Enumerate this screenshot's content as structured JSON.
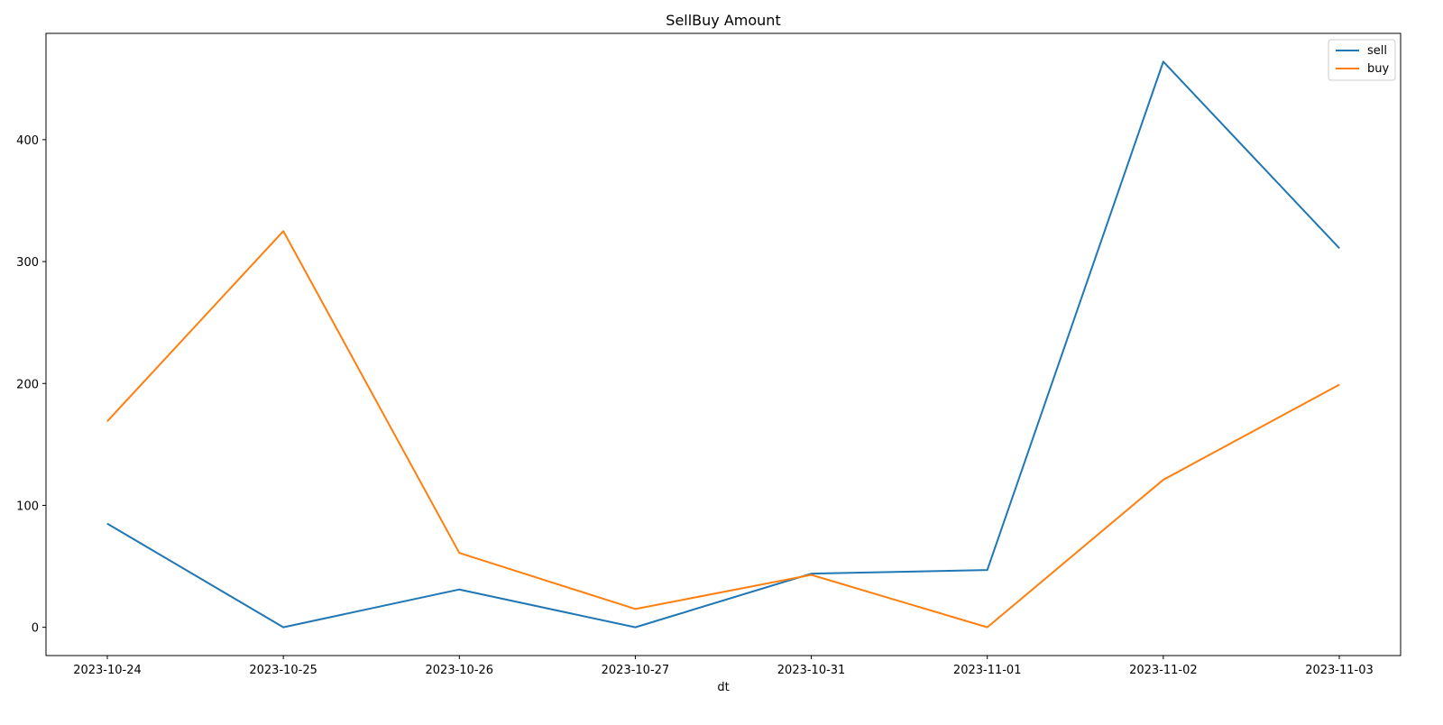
{
  "chart_data": {
    "type": "line",
    "title": "SellBuy Amount",
    "xlabel": "dt",
    "ylabel": "",
    "categories": [
      "2023-10-24",
      "2023-10-25",
      "2023-10-26",
      "2023-10-27",
      "2023-10-31",
      "2023-11-01",
      "2023-11-02",
      "2023-11-03"
    ],
    "series": [
      {
        "name": "sell",
        "color": "#1f77b4",
        "values": [
          85,
          0,
          31,
          0,
          44,
          47,
          464,
          311
        ]
      },
      {
        "name": "buy",
        "color": "#ff7f0e",
        "values": [
          169,
          325,
          61,
          15,
          43,
          0,
          121,
          199
        ]
      }
    ],
    "ylim": [
      -23.2,
      487.2
    ],
    "yticks": [
      0,
      100,
      200,
      300,
      400
    ],
    "grid": false,
    "legend": "top-right"
  }
}
